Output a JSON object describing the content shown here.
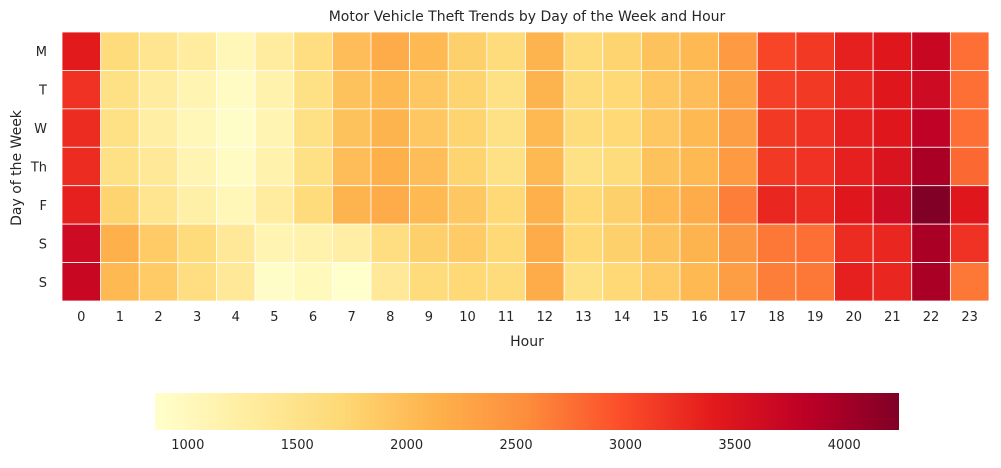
{
  "chart_data": {
    "type": "heatmap",
    "title": "Motor Vehicle Theft Trends by Day of the Week and Hour",
    "xlabel": "Hour",
    "ylabel": "Day of the Week",
    "x_categories": [
      "0",
      "1",
      "2",
      "3",
      "4",
      "5",
      "6",
      "7",
      "8",
      "9",
      "10",
      "11",
      "12",
      "13",
      "14",
      "15",
      "16",
      "17",
      "18",
      "19",
      "20",
      "21",
      "22",
      "23"
    ],
    "y_categories": [
      "M",
      "T",
      "W",
      "Th",
      "F",
      "S",
      "S"
    ],
    "colormap": "YlOrRd",
    "colorbar": {
      "min": 850,
      "max": 4250,
      "ticks": [
        1000,
        1500,
        2000,
        2500,
        3000,
        3500,
        4000
      ],
      "orientation": "horizontal",
      "placement": "bottom"
    },
    "grid": true,
    "values": [
      [
        3400,
        1650,
        1450,
        1300,
        1050,
        1300,
        1600,
        2000,
        2200,
        2050,
        1800,
        1650,
        2100,
        1650,
        1750,
        1950,
        2050,
        2400,
        3050,
        3150,
        3350,
        3450,
        3700,
        2750
      ],
      [
        3200,
        1550,
        1300,
        1100,
        950,
        1150,
        1550,
        1950,
        2050,
        1900,
        1750,
        1550,
        2100,
        1650,
        1700,
        1900,
        2000,
        2300,
        3100,
        3150,
        3300,
        3450,
        3650,
        2750
      ],
      [
        3250,
        1550,
        1250,
        1050,
        900,
        1100,
        1550,
        1950,
        2100,
        1900,
        1750,
        1550,
        2050,
        1650,
        1700,
        1900,
        2050,
        2350,
        3150,
        3200,
        3350,
        3450,
        3800,
        2750
      ],
      [
        3250,
        1550,
        1350,
        1100,
        950,
        1150,
        1550,
        2000,
        2150,
        2000,
        1750,
        1550,
        2050,
        1550,
        1650,
        1950,
        2050,
        2400,
        3150,
        3200,
        3350,
        3500,
        3950,
        2800
      ],
      [
        3350,
        1750,
        1450,
        1200,
        1050,
        1300,
        1650,
        2100,
        2200,
        2050,
        1900,
        1700,
        2150,
        1700,
        1800,
        2050,
        2200,
        2650,
        3300,
        3250,
        3450,
        3650,
        4250,
        3450
      ],
      [
        3650,
        2150,
        1850,
        1650,
        1350,
        1100,
        1150,
        1250,
        1600,
        1800,
        1850,
        1700,
        2200,
        1700,
        1800,
        1950,
        2100,
        2450,
        2700,
        2750,
        3250,
        3300,
        3950,
        3200
      ],
      [
        3700,
        2050,
        1850,
        1600,
        1350,
        900,
        1000,
        850,
        1350,
        1650,
        1700,
        1650,
        2200,
        1550,
        1700,
        1850,
        2050,
        2350,
        2650,
        2700,
        3350,
        3300,
        3950,
        2700
      ]
    ]
  }
}
